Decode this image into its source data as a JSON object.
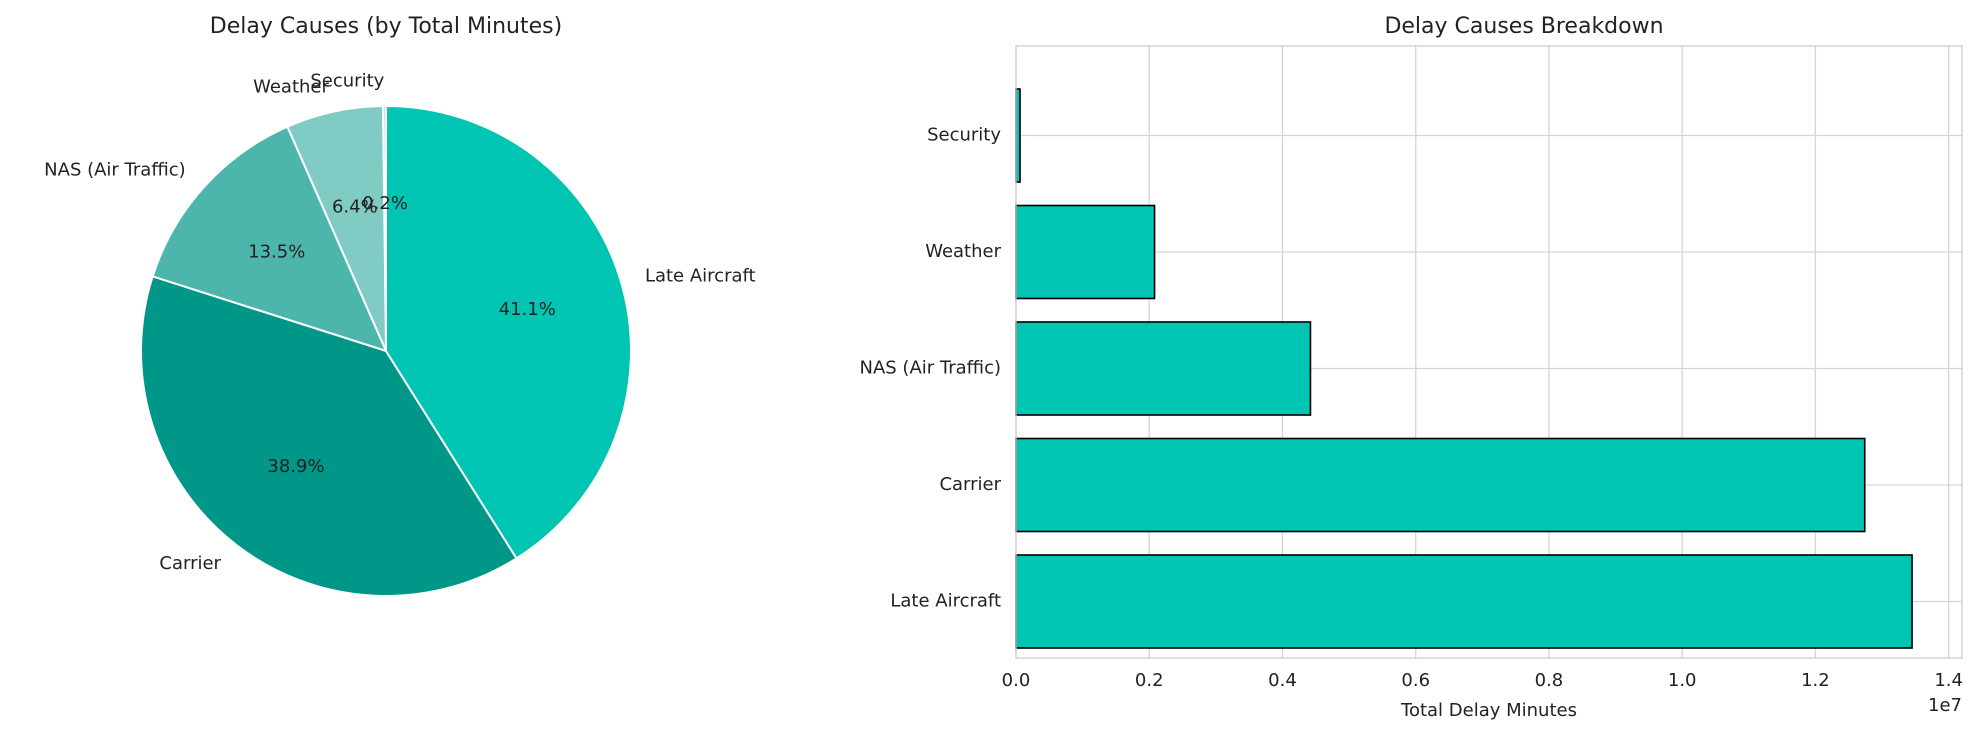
{
  "chart_data": [
    {
      "type": "pie",
      "title": "Delay Causes (by Total Minutes)",
      "categories": [
        "Security",
        "Weather",
        "NAS (Air Traffic)",
        "Carrier",
        "Late Aircraft"
      ],
      "values": [
        0.2,
        6.4,
        13.5,
        38.9,
        41.1
      ],
      "percent_labels": [
        "0.2%",
        "6.4%",
        "13.5%",
        "38.9%",
        "41.1%"
      ],
      "colors": [
        "#c4e8e3",
        "#80cbc4",
        "#4db6ac",
        "#009688",
        "#00c5b2"
      ]
    },
    {
      "type": "bar",
      "orientation": "horizontal",
      "title": "Delay Causes Breakdown",
      "categories": [
        "Late Aircraft",
        "Carrier",
        "NAS (Air Traffic)",
        "Weather",
        "Security"
      ],
      "values": [
        13450000,
        12740000,
        4420000,
        2080000,
        60000
      ],
      "xlabel": "Total Delay Minutes",
      "ylabel": "",
      "xlim": [
        0,
        14200000
      ],
      "xticks": [
        0,
        2000000,
        4000000,
        6000000,
        8000000,
        10000000,
        12000000,
        14000000
      ],
      "xtick_labels": [
        "0.0",
        "0.2",
        "0.4",
        "0.6",
        "0.8",
        "1.0",
        "1.2",
        "1.4"
      ],
      "offset_label": "1e7",
      "grid": true,
      "bar_color": "#00c5b2"
    }
  ]
}
